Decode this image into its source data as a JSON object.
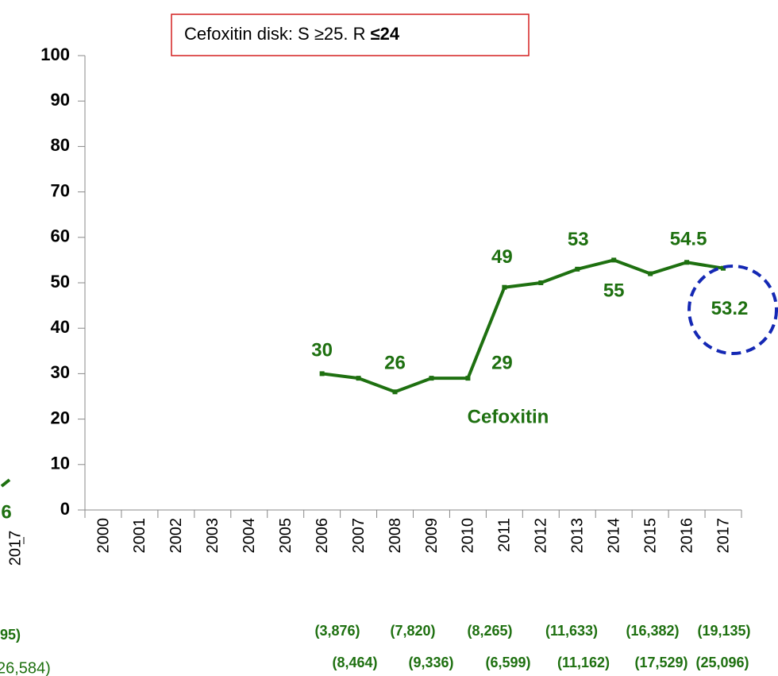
{
  "chart_data": {
    "type": "line",
    "title_parts": [
      "Cefoxitin disk: S ≥25. R ",
      "≤24"
    ],
    "categories": [
      "2000",
      "2001",
      "2002",
      "2003",
      "2004",
      "2005",
      "2006",
      "2007",
      "2008",
      "2009",
      "2010",
      "2011",
      "2012",
      "2013",
      "2014",
      "2015",
      "2016",
      "2017"
    ],
    "series": [
      {
        "name": "Cefoxitin",
        "color": "#1e7010",
        "values": [
          null,
          null,
          null,
          null,
          null,
          null,
          30,
          29,
          26,
          29,
          29,
          49,
          50,
          53,
          55,
          52,
          54.5,
          53.2
        ],
        "value_labels": [
          null,
          null,
          null,
          null,
          null,
          null,
          "30",
          null,
          "26",
          null,
          "29",
          "49",
          null,
          "53",
          "55",
          null,
          "54.5",
          "53.2"
        ]
      }
    ],
    "ylim": [
      0,
      100
    ],
    "yticks": [
      0,
      10,
      20,
      30,
      40,
      50,
      60,
      70,
      80,
      90,
      100
    ],
    "counts_row1": [
      "(3,876)",
      "(7,820)",
      "(8,265)",
      "(11,633)",
      "(16,382)",
      "(19,135)"
    ],
    "counts_row2": [
      "(8,464)",
      "(9,336)",
      "(6,599)",
      "(11,162)",
      "(17,529)",
      "(25,096)"
    ],
    "left_fragments": [
      "6",
      "2017",
      "95)",
      "26,584)"
    ]
  }
}
